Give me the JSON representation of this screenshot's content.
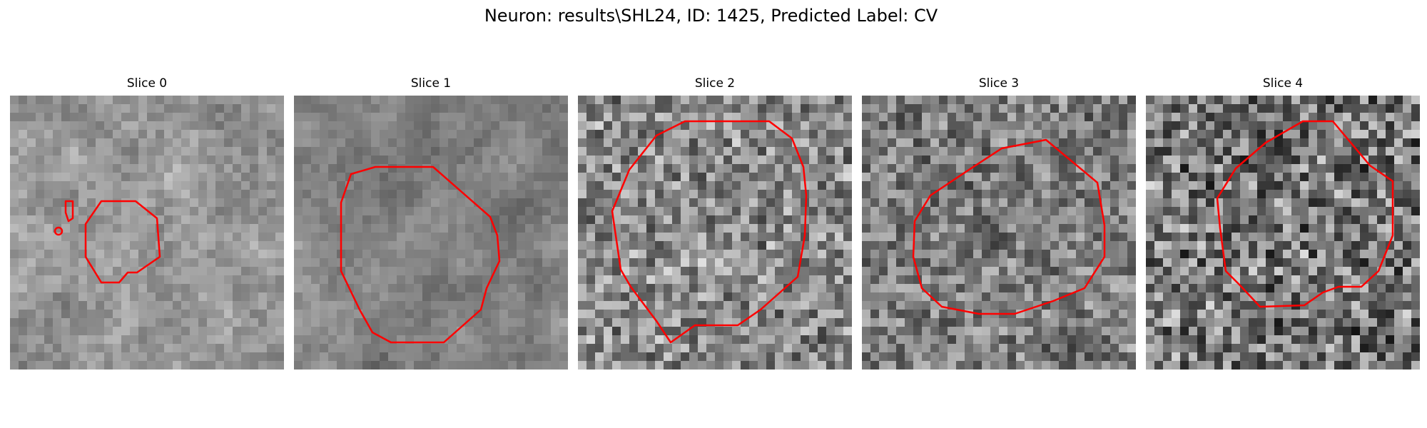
{
  "figure": {
    "title": "Neuron: results\\SHL24, ID: 1425, Predicted Label: CV"
  },
  "panels": [
    {
      "label": "Slice 0"
    },
    {
      "label": "Slice 1"
    },
    {
      "label": "Slice 2"
    },
    {
      "label": "Slice 3"
    },
    {
      "label": "Slice 4"
    }
  ],
  "colors": {
    "contour": "#ff0000",
    "background": "#ffffff"
  }
}
